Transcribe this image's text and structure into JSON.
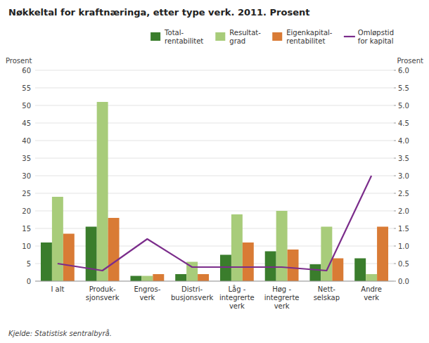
{
  "chart_data": {
    "type": "bar",
    "title": "Nøkkeltal for kraftnæringa, etter type verk. 2011. Prosent",
    "categories": [
      "I alt",
      "Produk-\nsjonsverk",
      "Engros-\nverk",
      "Distri-\nbusjonsverk",
      "Låg -\nintegrerte\nverk",
      "Høg -\nintegrerte\nverk",
      "Nett-\nselskap",
      "Andre\nverk"
    ],
    "series": [
      {
        "name": "Total-\nrentabilitet",
        "color": "#3a7d2c",
        "values": [
          11.0,
          15.5,
          1.5,
          2.0,
          7.5,
          8.5,
          4.8,
          6.5
        ]
      },
      {
        "name": "Resultat-\ngrad",
        "color": "#a8cc7a",
        "values": [
          24.0,
          51.0,
          1.5,
          5.5,
          19.0,
          20.0,
          15.5,
          2.0
        ]
      },
      {
        "name": "Eigenkapital-\nrentabilitet",
        "color": "#d97b35",
        "values": [
          13.5,
          18.0,
          2.0,
          2.0,
          11.0,
          9.0,
          6.5,
          15.5
        ]
      },
      {
        "name": "Omløpstid\nfor kapital",
        "color": "#7b2d8b",
        "values": [
          0.5,
          0.3,
          1.2,
          0.4,
          0.4,
          0.4,
          0.3,
          3.0
        ],
        "type": "line",
        "axis": "y2"
      }
    ],
    "ylim": [
      0,
      60
    ],
    "yticks": [
      0,
      5,
      10,
      15,
      20,
      25,
      30,
      35,
      40,
      45,
      50,
      55,
      60
    ],
    "y2lim": [
      0,
      6.0
    ],
    "y2ticks": [
      {
        "value": 0,
        "label": "0.0"
      },
      0.5,
      {
        "value": 1,
        "label": "1.0"
      },
      1.5,
      {
        "value": 2,
        "label": "2.0"
      },
      2.5,
      {
        "value": 3,
        "label": "3.0"
      },
      3.5,
      {
        "value": 4,
        "label": "4.0"
      },
      4.5,
      {
        "value": 5,
        "label": "5.0"
      },
      5.5,
      {
        "value": 6,
        "label": "6.0"
      }
    ],
    "ylabel": "Prosent",
    "y2label": "Prosent",
    "source": "Kjelde: Statistisk sentralbyrå.",
    "grid": true,
    "legend": "upper right"
  }
}
